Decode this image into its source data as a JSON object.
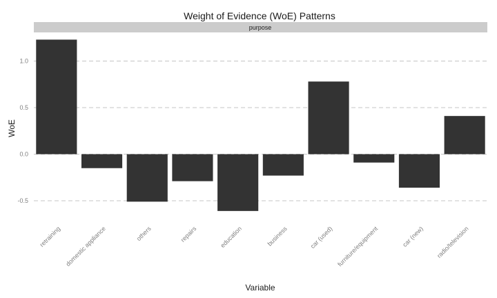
{
  "chart_data": {
    "type": "bar",
    "title": "Weight of Evidence (WoE) Patterns",
    "facet_label": "purpose",
    "xlabel": "Variable",
    "ylabel": "WoE",
    "categories": [
      "retraining",
      "domestic appliance",
      "others",
      "repairs",
      "education",
      "business",
      "car (used)",
      "furniture/equipment",
      "car (new)",
      "radio/television"
    ],
    "values": [
      1.23,
      -0.15,
      -0.51,
      -0.29,
      -0.61,
      -0.23,
      0.78,
      -0.09,
      -0.36,
      0.41
    ],
    "y_ticks": [
      -0.5,
      0.0,
      0.5,
      1.0
    ],
    "y_tick_labels": [
      "-0.5",
      "0.0",
      "0.5",
      "1.0"
    ],
    "ylim": [
      -0.7,
      1.3
    ],
    "grid": "horizontal dashed",
    "colors": {
      "bar": "#333333",
      "strip": "#cccccc",
      "grid": "#c4c4c4"
    }
  }
}
